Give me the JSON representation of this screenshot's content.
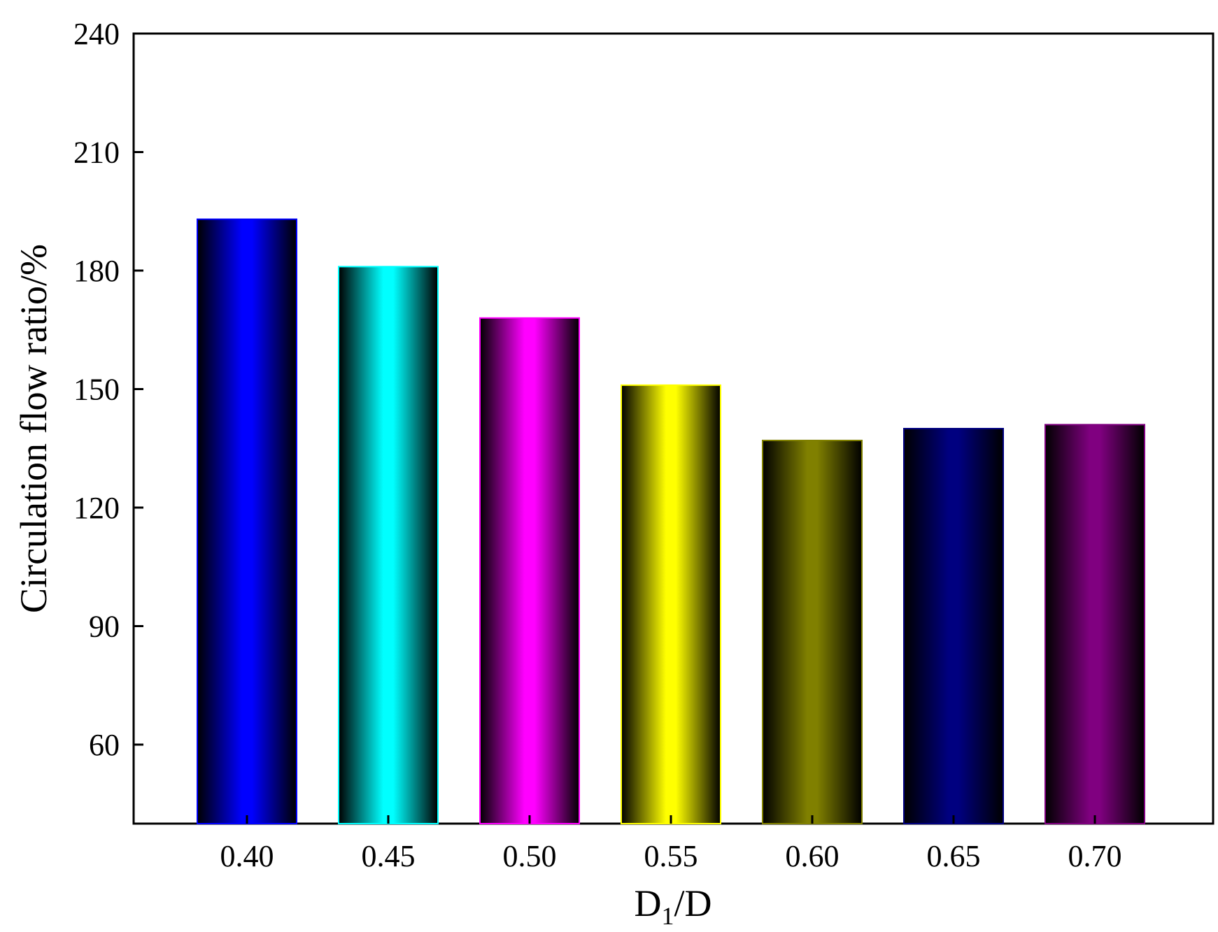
{
  "chart_data": {
    "type": "bar",
    "categories": [
      "0.40",
      "0.45",
      "0.50",
      "0.55",
      "0.60",
      "0.65",
      "0.70"
    ],
    "values": [
      193,
      181,
      168,
      151,
      137,
      140,
      141
    ],
    "bar_colors": [
      "#0000ff",
      "#00ffff",
      "#ff00ff",
      "#ffff00",
      "#808000",
      "#000080",
      "#800080"
    ],
    "xlabel_main": "D",
    "xlabel_sub": "1",
    "xlabel_tail": "/D",
    "ylabel": "Circulation flow ratio/%",
    "ylim": [
      40,
      240
    ],
    "yticks": [
      60,
      90,
      120,
      150,
      180,
      210,
      240
    ],
    "grid": false,
    "legend": "none"
  }
}
